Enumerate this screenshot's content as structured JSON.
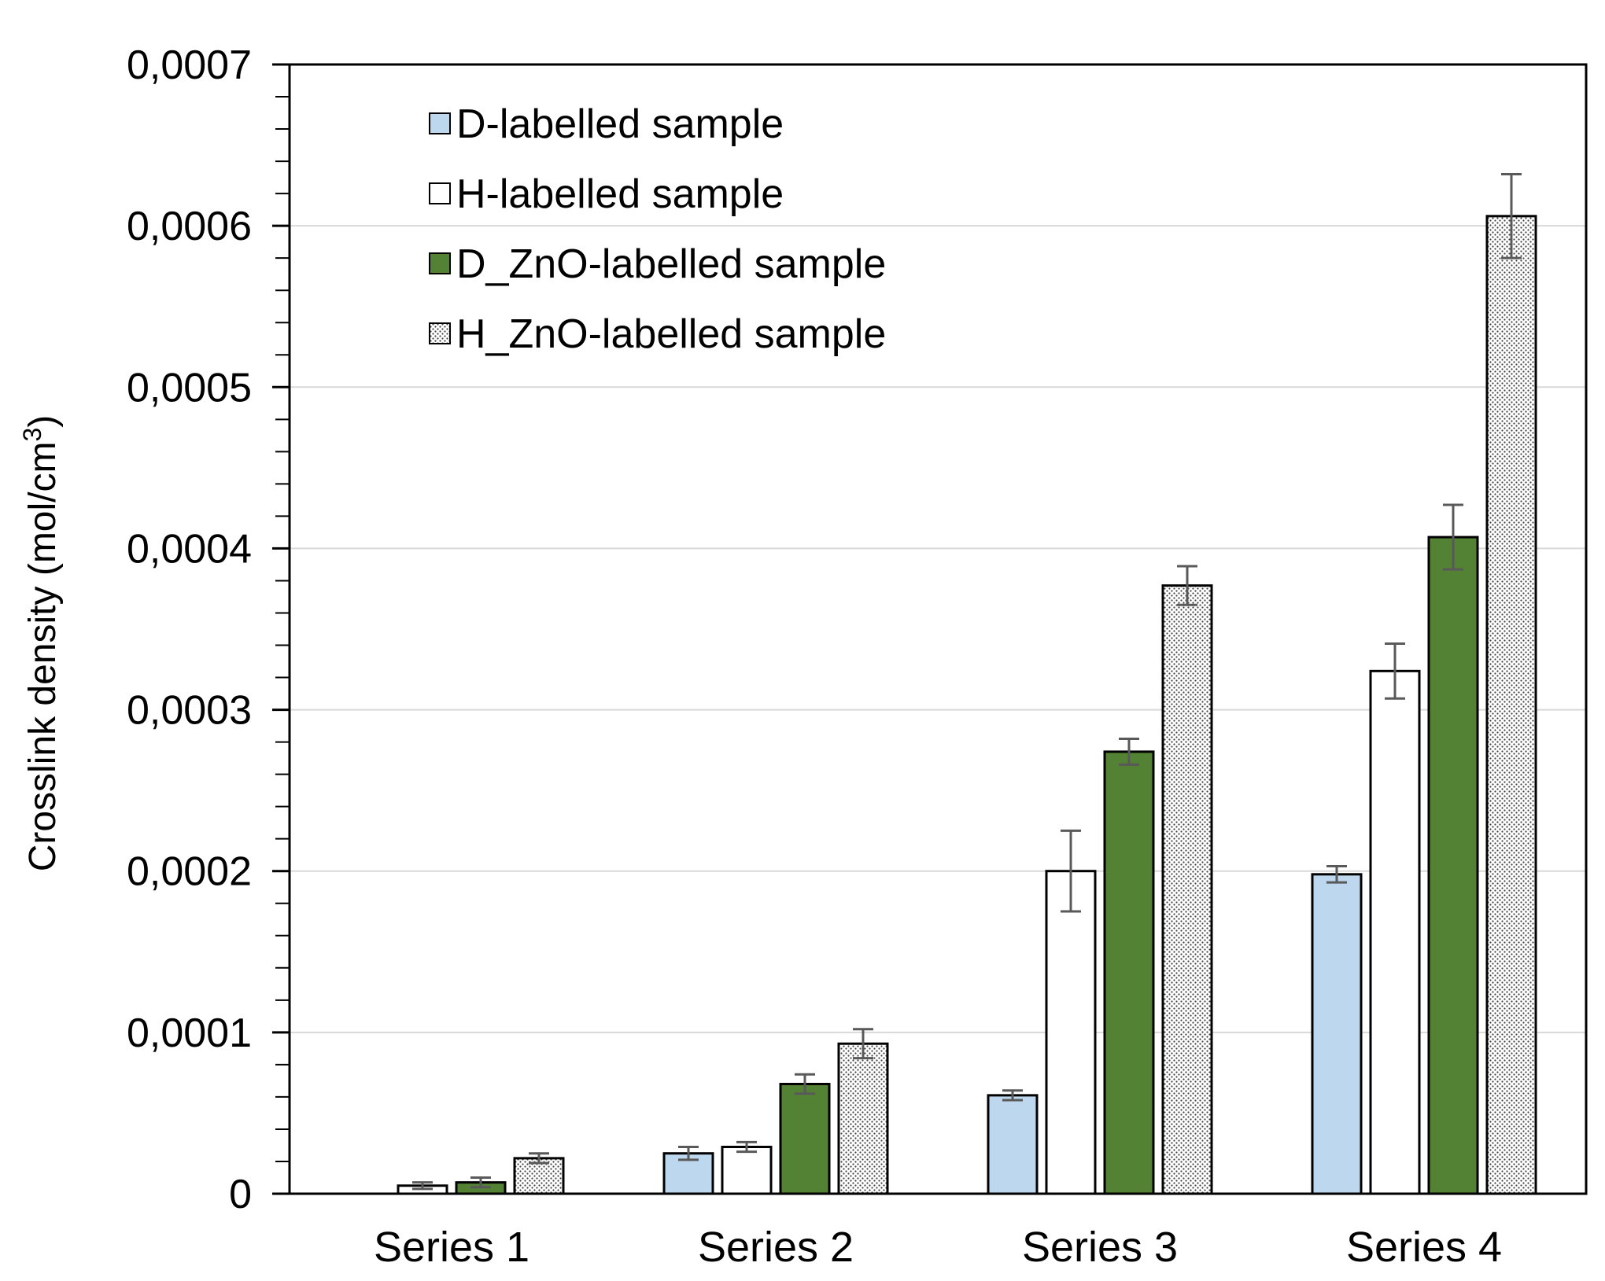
{
  "chart_data": {
    "type": "bar",
    "title": "",
    "xlabel": "",
    "ylabel": "Crosslink density (mol/cm",
    "ylabel_sup": "3",
    "ylabel_close": ")",
    "ylim": [
      0,
      0.0007
    ],
    "yticks": [
      0,
      0.0001,
      0.0002,
      0.0003,
      0.0004,
      0.0005,
      0.0006,
      0.0007
    ],
    "ytick_labels": [
      "0",
      "0,0001",
      "0,0002",
      "0,0003",
      "0,0004",
      "0,0005",
      "0,0006",
      "0,0007"
    ],
    "grid": true,
    "legend_position": "top-left",
    "categories": [
      "Series 1",
      "Series 2",
      "Series 3",
      "Series 4"
    ],
    "series": [
      {
        "name": "D-labelled sample",
        "fill": "#bdd7ee",
        "pattern": "solid",
        "values": [
          null,
          2.5e-05,
          6.1e-05,
          0.000198
        ],
        "errors": [
          null,
          4e-06,
          3e-06,
          5e-06
        ]
      },
      {
        "name": "H-labelled sample",
        "fill": "#ffffff",
        "pattern": "solid",
        "values": [
          5e-06,
          2.9e-05,
          0.0002,
          0.000324
        ],
        "errors": [
          2e-06,
          3e-06,
          2.5e-05,
          1.7e-05
        ]
      },
      {
        "name": "D_ZnO-labelled sample",
        "fill": "#548235",
        "pattern": "solid",
        "values": [
          7e-06,
          6.8e-05,
          0.000274,
          0.000407
        ],
        "errors": [
          3e-06,
          6e-06,
          8e-06,
          2e-05
        ]
      },
      {
        "name": "H_ZnO-labelled sample",
        "fill": "#ffffff",
        "pattern": "dotted",
        "values": [
          2.2e-05,
          9.3e-05,
          0.000377,
          0.000606
        ],
        "errors": [
          3e-06,
          9e-06,
          1.2e-05,
          2.6e-05
        ]
      }
    ],
    "colors": {
      "axis": "#000000",
      "grid": "#d9d9d9",
      "error_bar": "#595959",
      "pattern_dot": "#404040"
    }
  }
}
